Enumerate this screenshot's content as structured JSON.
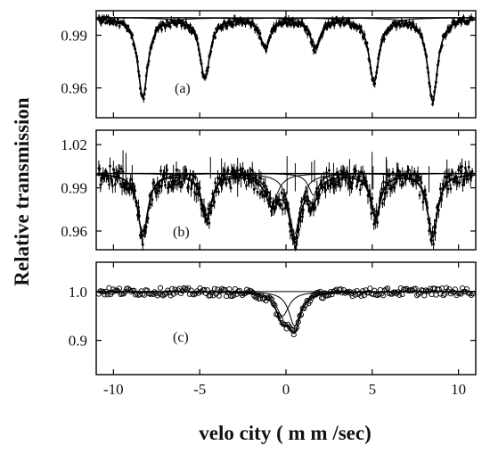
{
  "chart_data": {
    "type": "line",
    "xlabel": "velo city ( m m /sec)",
    "ylabel": "Relative transmission",
    "xlim": [
      -11,
      11
    ],
    "x_ticks": [
      -10,
      -5,
      0,
      5,
      10
    ],
    "x_tick_labels": [
      "-10",
      "-5",
      "0",
      "5",
      "10"
    ],
    "grid": false,
    "panels": [
      {
        "label": "(a)",
        "ylim": [
          0.943,
          1.004
        ],
        "y_ticks": [
          0.99,
          0.96
        ],
        "y_tick_labels": [
          "0.99",
          "0.96"
        ],
        "baseline": 1.0,
        "noise": 0.002,
        "lines": [
          {
            "center": -8.3,
            "depth": 0.045,
            "width": 0.35
          },
          {
            "center": -4.7,
            "depth": 0.034,
            "width": 0.35
          },
          {
            "center": -1.2,
            "depth": 0.017,
            "width": 0.35
          },
          {
            "center": 1.7,
            "depth": 0.017,
            "width": 0.35
          },
          {
            "center": 5.1,
            "depth": 0.036,
            "width": 0.35
          },
          {
            "center": 8.5,
            "depth": 0.047,
            "width": 0.35
          }
        ]
      },
      {
        "label": "(b)",
        "ylim": [
          0.947,
          1.03
        ],
        "y_ticks": [
          1.02,
          0.99,
          0.96
        ],
        "y_tick_labels": [
          "1.02",
          "0.99",
          "0.96"
        ],
        "baseline": 1.0,
        "noise": 0.007,
        "lines": [
          {
            "center": -8.3,
            "depth": 0.043,
            "width": 0.35
          },
          {
            "center": -4.6,
            "depth": 0.032,
            "width": 0.35
          },
          {
            "center": -0.8,
            "depth": 0.02,
            "width": 0.45
          },
          {
            "center": 0.5,
            "depth": 0.042,
            "width": 0.4
          },
          {
            "center": 1.6,
            "depth": 0.015,
            "width": 0.35
          },
          {
            "center": 5.2,
            "depth": 0.03,
            "width": 0.35
          },
          {
            "center": 8.5,
            "depth": 0.044,
            "width": 0.35
          }
        ]
      },
      {
        "label": "(c)",
        "ylim": [
          0.83,
          1.06
        ],
        "y_ticks": [
          1.0,
          0.9
        ],
        "y_tick_labels": [
          "1.0",
          "0.9"
        ],
        "baseline": 1.0,
        "noise": 0.008,
        "lines": [
          {
            "center": -0.2,
            "depth": 0.05,
            "width": 0.45
          },
          {
            "center": 0.5,
            "depth": 0.07,
            "width": 0.4
          }
        ]
      }
    ]
  }
}
